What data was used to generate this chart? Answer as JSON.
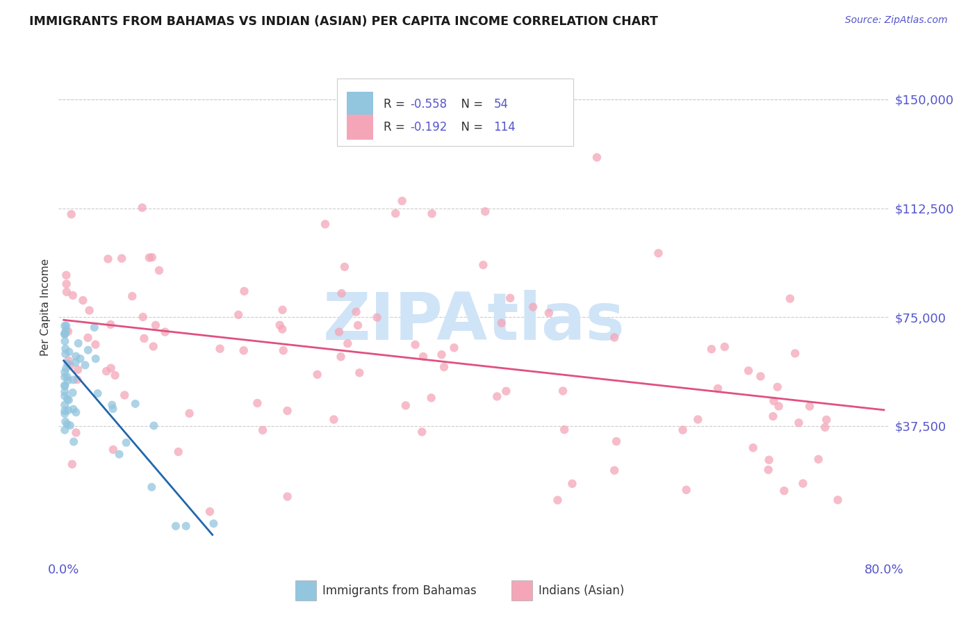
{
  "title": "IMMIGRANTS FROM BAHAMAS VS INDIAN (ASIAN) PER CAPITA INCOME CORRELATION CHART",
  "source_text": "Source: ZipAtlas.com",
  "ylabel": "Per Capita Income",
  "xlim": [
    -0.005,
    0.805
  ],
  "ylim": [
    -8000,
    165000
  ],
  "yticks": [
    0,
    37500,
    75000,
    112500,
    150000
  ],
  "ytick_labels": [
    "",
    "$37,500",
    "$75,000",
    "$112,500",
    "$150,000"
  ],
  "xtick_labels": [
    "0.0%",
    "80.0%"
  ],
  "xtick_positions": [
    0.0,
    0.8
  ],
  "blue_R": -0.558,
  "blue_N": 54,
  "pink_R": -0.192,
  "pink_N": 114,
  "blue_color": "#92c5de",
  "pink_color": "#f4a6b8",
  "blue_line_color": "#2166ac",
  "pink_line_color": "#e05080",
  "blue_line_x": [
    0.0,
    0.145
  ],
  "blue_line_y": [
    60000,
    0
  ],
  "pink_line_x": [
    0.0,
    0.8
  ],
  "pink_line_y": [
    74000,
    43000
  ],
  "legend_label_blue": "Immigrants from Bahamas",
  "legend_label_pink": "Indians (Asian)",
  "watermark": "ZIPAtlas",
  "title_color": "#1a1a1a",
  "axis_color": "#5555cc",
  "background_color": "#ffffff",
  "grid_color": "#cccccc",
  "title_fontsize": 12.5,
  "watermark_color": "#d0e4f7",
  "legend_text_color": "#5555cc",
  "legend_R_color": "#333333"
}
